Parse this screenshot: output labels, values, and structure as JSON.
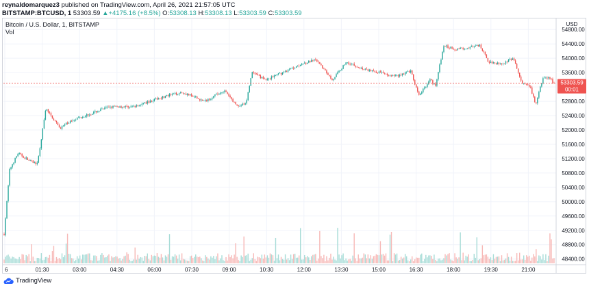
{
  "header": {
    "author": "reynaldomarquez3",
    "published_text": "published on TradingView.com, April 26, 2021 21:57:05 UTC",
    "symbol": "BITSTAMP:BTCUSD, 1",
    "last": "53303.59",
    "change_arrow": "▲",
    "change": "+4175.16 (+8.5%)",
    "o_label": "O:",
    "o_value": "53308.13",
    "h_label": "H:",
    "h_value": "53308.13",
    "l_label": "L:",
    "l_value": "53303.59",
    "c_label": "C:",
    "c_value": "53303.59"
  },
  "legend": {
    "title": "Bitcoin / U.S. Dollar, 1, BITSTAMP",
    "volume_label": "Vol"
  },
  "price_tag": {
    "value": "53303.59",
    "countdown": "00:01"
  },
  "footer": {
    "brand": "TradingView"
  },
  "colors": {
    "up": "#26a69a",
    "down": "#ef5350",
    "vol_up": "#a7dcd7",
    "vol_down": "#f7b9b7",
    "price_tag": "#ef5350",
    "grid": "#f0f3fa",
    "axis_text": "#131722",
    "brand": "#2962ff"
  },
  "chart_data": {
    "type": "candlestick",
    "title": "Bitcoin / U.S. Dollar, 1, BITSTAMP",
    "y_axis_unit": "USD",
    "y_ticks": [
      54800,
      54400,
      54000,
      53600,
      53200,
      52800,
      52400,
      52000,
      51600,
      51200,
      50800,
      50400,
      50000,
      49600,
      49200,
      48800,
      48400
    ],
    "x_ticks": [
      "6",
      "01:30",
      "03:00",
      "04:30",
      "06:00",
      "07:30",
      "09:00",
      "10:30",
      "12:00",
      "13:30",
      "15:00",
      "16:30",
      "18:00",
      "19:30",
      "21:00"
    ],
    "ylim": [
      48280,
      54900
    ],
    "last_price": 53303.59,
    "price_path": [
      [
        0,
        49100
      ],
      [
        0.01,
        50900
      ],
      [
        0.025,
        51350
      ],
      [
        0.045,
        51150
      ],
      [
        0.06,
        51050
      ],
      [
        0.075,
        52600
      ],
      [
        0.1,
        52050
      ],
      [
        0.125,
        52300
      ],
      [
        0.155,
        52450
      ],
      [
        0.19,
        52650
      ],
      [
        0.235,
        52650
      ],
      [
        0.28,
        52900
      ],
      [
        0.32,
        53050
      ],
      [
        0.36,
        52800
      ],
      [
        0.395,
        53100
      ],
      [
        0.42,
        52650
      ],
      [
        0.435,
        52750
      ],
      [
        0.445,
        53600
      ],
      [
        0.47,
        53400
      ],
      [
        0.5,
        53600
      ],
      [
        0.535,
        53850
      ],
      [
        0.56,
        53950
      ],
      [
        0.59,
        53400
      ],
      [
        0.615,
        53900
      ],
      [
        0.645,
        53700
      ],
      [
        0.675,
        53600
      ],
      [
        0.705,
        53500
      ],
      [
        0.73,
        53650
      ],
      [
        0.745,
        52950
      ],
      [
        0.765,
        53400
      ],
      [
        0.775,
        53250
      ],
      [
        0.79,
        54350
      ],
      [
        0.81,
        54250
      ],
      [
        0.835,
        54300
      ],
      [
        0.855,
        54350
      ],
      [
        0.87,
        53900
      ],
      [
        0.895,
        53850
      ],
      [
        0.915,
        54000
      ],
      [
        0.93,
        53300
      ],
      [
        0.945,
        53200
      ],
      [
        0.955,
        52700
      ],
      [
        0.968,
        53450
      ],
      [
        0.98,
        53450
      ],
      [
        0.988,
        53303.59
      ]
    ]
  }
}
